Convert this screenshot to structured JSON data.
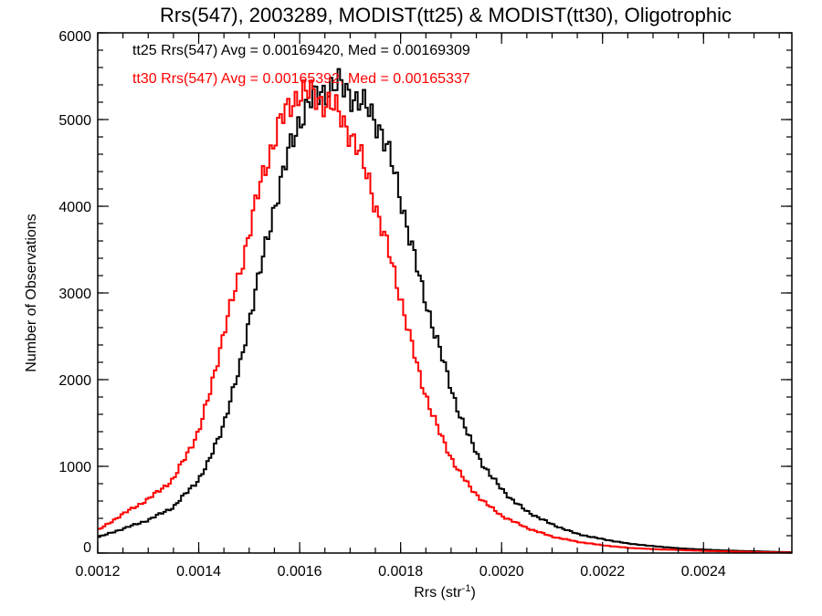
{
  "chart_data": {
    "type": "line",
    "style": "histogram-step",
    "title": "Rrs(547), 2003289, MODIST(tt25) & MODIST(tt30), Oligotrophic",
    "xlabel": "Rrs (str",
    "xlabel_sup": "-1",
    "xlabel_tail": ")",
    "ylabel": "Number of Observations",
    "xlim": [
      0.0012,
      0.002575
    ],
    "ylim": [
      0,
      6000
    ],
    "x_ticks": [
      0.0012,
      0.0014,
      0.0016,
      0.0018,
      0.002,
      0.0022,
      0.0024
    ],
    "x_tick_labels": [
      "0.0012",
      "0.0014",
      "0.0016",
      "0.0018",
      "0.0020",
      "0.0022",
      "0.0024"
    ],
    "x_minor_step": 5e-05,
    "y_ticks": [
      0,
      1000,
      2000,
      3000,
      4000,
      5000,
      6000
    ],
    "y_tick_labels": [
      "0",
      "1000",
      "2000",
      "3000",
      "4000",
      "5000",
      "6000"
    ],
    "y_minor_step": 200,
    "grid": false,
    "legend": "none",
    "annotations": [
      {
        "text": "tt25 Rrs(547) Avg = 0.00169420, Med = 0.00169309",
        "color": "#000000"
      },
      {
        "text": "tt30 Rrs(547) Avg = 0.00165392, Med = 0.00165337",
        "color": "#ff0000"
      }
    ],
    "series": [
      {
        "color": "#000000",
        "x": [
          0.0012,
          0.00125,
          0.0013,
          0.00135,
          0.0014,
          0.00142,
          0.00145,
          0.00148,
          0.0015,
          0.00152,
          0.00155,
          0.00158,
          0.0016,
          0.00162,
          0.00164,
          0.00166,
          0.00168,
          0.0017,
          0.00172,
          0.00174,
          0.00176,
          0.00178,
          0.0018,
          0.00182,
          0.00184,
          0.00186,
          0.00188,
          0.0019,
          0.00192,
          0.00194,
          0.00196,
          0.00198,
          0.002,
          0.00202,
          0.00205,
          0.0021,
          0.00215,
          0.0022,
          0.00225,
          0.0023,
          0.00235,
          0.0024,
          0.00245,
          0.0025,
          0.00255,
          0.002575
        ],
        "y": [
          180,
          280,
          380,
          530,
          850,
          1050,
          1500,
          2100,
          2700,
          3200,
          4000,
          4650,
          5000,
          5200,
          5300,
          5370,
          5400,
          5300,
          5200,
          5080,
          4900,
          4550,
          4100,
          3600,
          3100,
          2700,
          2300,
          1900,
          1550,
          1280,
          1050,
          880,
          740,
          620,
          480,
          330,
          220,
          160,
          110,
          80,
          55,
          40,
          28,
          20,
          12,
          10
        ]
      },
      {
        "color": "#ff0000",
        "x": [
          0.0012,
          0.00125,
          0.0013,
          0.00135,
          0.0014,
          0.00142,
          0.00145,
          0.00148,
          0.0015,
          0.00152,
          0.00154,
          0.00156,
          0.00158,
          0.0016,
          0.00162,
          0.00164,
          0.00166,
          0.00168,
          0.0017,
          0.00172,
          0.00174,
          0.00176,
          0.00178,
          0.0018,
          0.00182,
          0.00184,
          0.00186,
          0.00188,
          0.0019,
          0.00192,
          0.00194,
          0.00196,
          0.00198,
          0.002,
          0.00205,
          0.0021,
          0.00215,
          0.0022,
          0.00225,
          0.0023,
          0.00235,
          0.0024,
          0.00245,
          0.0025,
          0.00255,
          0.002575
        ],
        "y": [
          260,
          450,
          620,
          850,
          1400,
          1800,
          2550,
          3200,
          3700,
          4200,
          4600,
          4950,
          5150,
          5320,
          5300,
          5230,
          5180,
          5050,
          4850,
          4580,
          4250,
          3800,
          3400,
          2950,
          2450,
          2000,
          1650,
          1350,
          1100,
          900,
          740,
          620,
          520,
          430,
          290,
          190,
          130,
          90,
          60,
          45,
          35,
          25,
          18,
          12,
          8,
          6
        ]
      }
    ]
  }
}
